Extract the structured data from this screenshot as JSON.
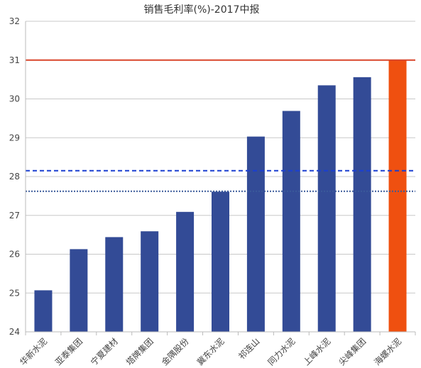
{
  "chart_data": {
    "type": "bar",
    "title": "销售毛利率(%)-2017中报",
    "categories": [
      "华新水泥",
      "亚泰集团",
      "宁夏建材",
      "塔牌集团",
      "金隅股份",
      "冀东水泥",
      "祁连山",
      "同力水泥",
      "上峰水泥",
      "尖峰集团",
      "海螺水泥"
    ],
    "values": [
      25.07,
      26.13,
      26.44,
      26.59,
      27.09,
      27.61,
      29.03,
      29.69,
      30.35,
      30.56,
      31.0
    ],
    "highlight_index": 10,
    "bar_color": "#334b96",
    "highlight_color": "#ef5010",
    "ylim": [
      24,
      32
    ],
    "yticks": [
      24,
      25,
      26,
      27,
      28,
      29,
      30,
      31,
      32
    ],
    "reference_lines": [
      {
        "value": 31.0,
        "style": "solid",
        "color": "#d9452a"
      },
      {
        "value": 28.15,
        "style": "dashed",
        "color": "#1a3fd1"
      },
      {
        "value": 27.62,
        "style": "dotted",
        "color": "#3a5a9a"
      }
    ],
    "grid": true,
    "xlabel": "",
    "ylabel": ""
  }
}
